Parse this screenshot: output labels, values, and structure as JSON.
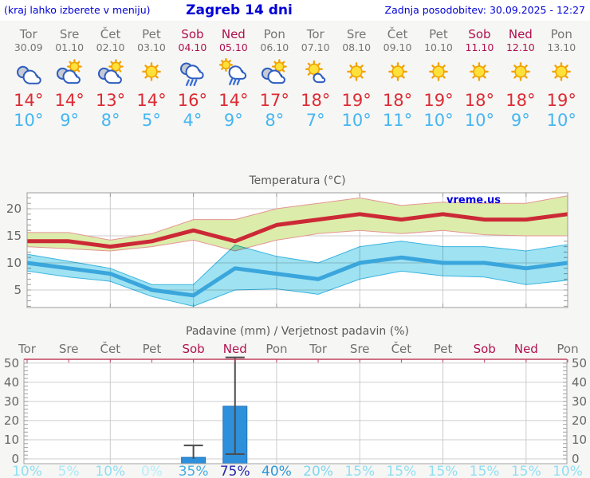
{
  "header": {
    "left_note": "(kraj lahko izberete v meniju)",
    "title": "Zagreb 14 dni",
    "updated": "Zadnja posodobitev: 30.09.2025 - 12:27"
  },
  "watermark": "vreme.us",
  "colors": {
    "header_blue": "#0000d6",
    "weekday_gray": "#757575",
    "weekend_crimson": "#b0104f",
    "tmax_red": "#dd2b33",
    "tmin_blue": "#45b6f2",
    "max_line": "#cc2936",
    "min_line": "#3aa6dc",
    "max_band": "#dcecaa",
    "max_band_edge": "#e59595",
    "min_band": "#9fe2f2",
    "min_band_edge": "#3ab4e0",
    "bar_blue": "#2e8fdb",
    "whisker_gray": "#4d4d4d",
    "precip_top_border": "#c04060",
    "grid_gray": "#cccccc"
  },
  "days": [
    {
      "name": "Tor",
      "date": "30.09",
      "weekend": false,
      "icon": "cloudy",
      "tmax": "14°",
      "tmin": "10°",
      "prob": "10%",
      "prob_color": "#8fdff3"
    },
    {
      "name": "Sre",
      "date": "01.10",
      "weekend": false,
      "icon": "partly-cloudy",
      "tmax": "14°",
      "tmin": "9°",
      "prob": "5%",
      "prob_color": "#aceaf7"
    },
    {
      "name": "Čet",
      "date": "02.10",
      "weekend": false,
      "icon": "partly-cloudy",
      "tmax": "13°",
      "tmin": "8°",
      "prob": "10%",
      "prob_color": "#8fdff3"
    },
    {
      "name": "Pet",
      "date": "03.10",
      "weekend": false,
      "icon": "sunny",
      "tmax": "14°",
      "tmin": "5°",
      "prob": "0%",
      "prob_color": "#b9eef9"
    },
    {
      "name": "Sob",
      "date": "04.10",
      "weekend": true,
      "icon": "rain",
      "tmax": "16°",
      "tmin": "4°",
      "prob": "35%",
      "prob_color": "#44aee3"
    },
    {
      "name": "Ned",
      "date": "05.10",
      "weekend": true,
      "icon": "sun-rain",
      "tmax": "14°",
      "tmin": "9°",
      "prob": "75%",
      "prob_color": "#2527ad"
    },
    {
      "name": "Pon",
      "date": "06.10",
      "weekend": false,
      "icon": "partly-cloudy",
      "tmax": "17°",
      "tmin": "8°",
      "prob": "40%",
      "prob_color": "#2f96da"
    },
    {
      "name": "Tor",
      "date": "07.10",
      "weekend": false,
      "icon": "mostly-sunny",
      "tmax": "18°",
      "tmin": "7°",
      "prob": "20%",
      "prob_color": "#7ed7f0"
    },
    {
      "name": "Sre",
      "date": "08.10",
      "weekend": false,
      "icon": "sunny",
      "tmax": "19°",
      "tmin": "10°",
      "prob": "15%",
      "prob_color": "#8fdff3"
    },
    {
      "name": "Čet",
      "date": "09.10",
      "weekend": false,
      "icon": "sunny",
      "tmax": "18°",
      "tmin": "11°",
      "prob": "15%",
      "prob_color": "#8fdff3"
    },
    {
      "name": "Pet",
      "date": "10.10",
      "weekend": false,
      "icon": "sunny",
      "tmax": "19°",
      "tmin": "10°",
      "prob": "15%",
      "prob_color": "#8fdff3"
    },
    {
      "name": "Sob",
      "date": "11.10",
      "weekend": true,
      "icon": "sunny",
      "tmax": "18°",
      "tmin": "10°",
      "prob": "15%",
      "prob_color": "#8fdff3"
    },
    {
      "name": "Ned",
      "date": "12.10",
      "weekend": true,
      "icon": "sunny",
      "tmax": "18°",
      "tmin": "9°",
      "prob": "15%",
      "prob_color": "#8fdff3"
    },
    {
      "name": "Pon",
      "date": "13.10",
      "weekend": false,
      "icon": "sunny",
      "tmax": "19°",
      "tmin": "10°",
      "prob": "10%",
      "prob_color": "#8fdff3"
    }
  ],
  "chart_data": [
    {
      "type": "line",
      "title": "Temperatura (°C)",
      "x_labels": [
        "Tor",
        "Sre",
        "Čet",
        "Pet",
        "Sob",
        "Ned",
        "Pon",
        "Tor",
        "Sre",
        "Čet",
        "Pet",
        "Sob",
        "Ned",
        "Pon"
      ],
      "series": [
        {
          "name": "max_temp",
          "color": "#cc2936",
          "values": [
            14,
            14,
            13,
            14,
            16,
            14,
            17,
            18,
            19,
            18,
            19,
            18,
            18,
            19
          ]
        },
        {
          "name": "max_range_upper",
          "values": [
            15.6,
            15.6,
            14.2,
            15.4,
            18,
            18,
            20,
            21,
            22,
            20.6,
            21.2,
            21,
            21,
            22.4
          ]
        },
        {
          "name": "max_range_lower",
          "values": [
            13,
            12.6,
            12.2,
            13,
            14.2,
            12.2,
            14.2,
            15.4,
            16,
            15.4,
            16,
            15.2,
            15,
            15
          ]
        },
        {
          "name": "min_temp",
          "color": "#3aa6dc",
          "values": [
            10,
            9,
            8,
            5,
            4,
            9,
            8,
            7,
            10,
            11,
            10,
            10,
            9,
            10
          ]
        },
        {
          "name": "min_range_upper",
          "values": [
            11.6,
            10.3,
            9,
            6,
            6,
            13.3,
            11.2,
            10,
            13,
            14,
            13,
            13,
            12.2,
            13.4
          ]
        },
        {
          "name": "min_range_lower",
          "values": [
            8.5,
            7.4,
            6.6,
            3.8,
            2,
            5,
            5.2,
            4.2,
            7,
            8.5,
            7.6,
            7.4,
            6,
            6.8
          ]
        }
      ],
      "ylim": [
        1.5,
        23
      ],
      "yticks": [
        5,
        10,
        15,
        20
      ],
      "grid": true,
      "watermark": "vreme.us"
    },
    {
      "type": "bar",
      "title": "Padavine (mm) / Verjetnost padavin (%)",
      "categories": [
        "Tor",
        "Sre",
        "Čet",
        "Pet",
        "Sob",
        "Ned",
        "Pon",
        "Tor",
        "Sre",
        "Čet",
        "Pet",
        "Sob",
        "Ned",
        "Pon"
      ],
      "values": [
        0,
        0,
        0,
        0,
        0.8,
        27.5,
        0,
        0,
        0,
        0,
        0,
        0,
        0,
        0
      ],
      "whisker_low": [
        null,
        null,
        null,
        null,
        0,
        2.5,
        null,
        null,
        null,
        null,
        null,
        null,
        null,
        null
      ],
      "whisker_high": [
        null,
        null,
        null,
        null,
        7,
        53,
        null,
        null,
        null,
        null,
        null,
        null,
        null,
        null
      ],
      "probabilities": [
        "10%",
        "5%",
        "10%",
        "0%",
        "35%",
        "75%",
        "40%",
        "20%",
        "15%",
        "15%",
        "15%",
        "15%",
        "15%",
        "10%"
      ],
      "ylim": [
        0,
        52
      ],
      "yticks": [
        0,
        10,
        20,
        30,
        40,
        50
      ],
      "grid": true
    }
  ]
}
